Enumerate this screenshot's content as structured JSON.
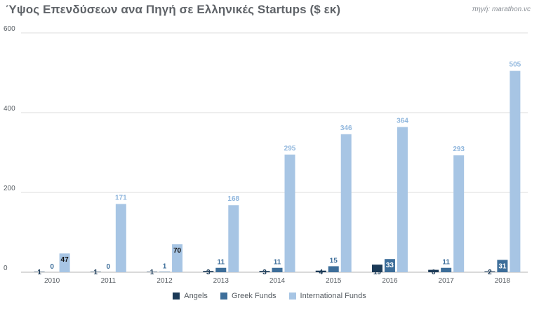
{
  "title": "Ύψος Επενδύσεων ανα Πηγή σε Ελληνικές Startups ($ εκ)",
  "source": "πηγή: marathon.vc",
  "colors": {
    "angels": "#1b3a57",
    "greek_funds": "#3d6e9a",
    "international_funds": "#a7c5e4",
    "grid": "#dcdcdc",
    "axis_text": "#555b61"
  },
  "chart_data": {
    "type": "bar",
    "title": "Ύψος Επενδύσεων ανα Πηγή σε Ελληνικές Startups ($ εκ)",
    "xlabel": "",
    "ylabel": "",
    "ylim": [
      0,
      600
    ],
    "yticks": [
      0,
      200,
      400,
      600
    ],
    "grid": true,
    "legend_position": "bottom",
    "categories": [
      "2010",
      "2011",
      "2012",
      "2013",
      "2014",
      "2015",
      "2016",
      "2017",
      "2018"
    ],
    "series": [
      {
        "name": "Angels",
        "color": "#1b3a57",
        "values": [
          1,
          1,
          1,
          3,
          3,
          4,
          19,
          6,
          2
        ]
      },
      {
        "name": "Greek Funds",
        "color": "#3d6e9a",
        "values": [
          0,
          0,
          1,
          11,
          11,
          15,
          33,
          11,
          31
        ]
      },
      {
        "name": "International Funds",
        "color": "#a7c5e4",
        "values": [
          47,
          171,
          70,
          168,
          295,
          346,
          364,
          293,
          505
        ]
      }
    ]
  }
}
